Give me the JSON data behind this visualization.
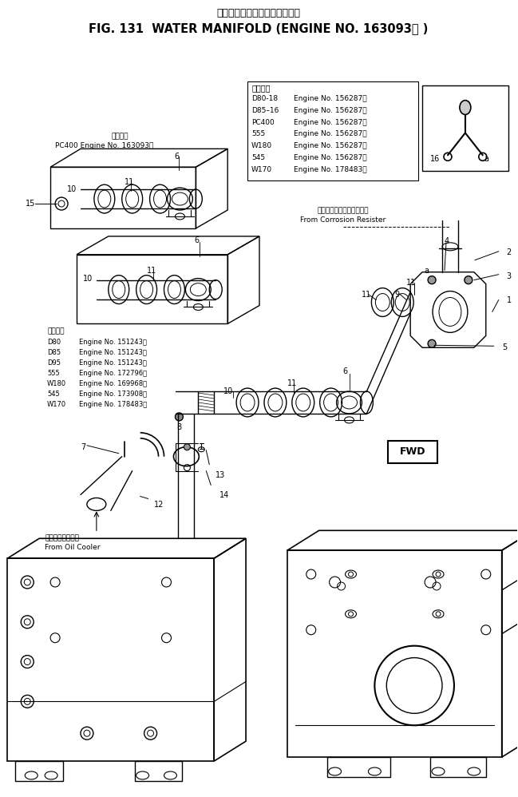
{
  "title_jp": "ウォータマニホルド　適用号機",
  "title_en": "FIG. 131  WATER MANIFOLD (ENGINE NO. 163093－ )",
  "bg_color": "#ffffff",
  "table1_title": "適用号機",
  "table1_lines": [
    [
      "D80-18",
      "Engine No. 156287～"
    ],
    [
      "D85–16",
      "Engine No. 156287～"
    ],
    [
      "PC400",
      "Engine No. 156287～"
    ],
    [
      "555",
      "Engine No. 156287～"
    ],
    [
      "W180",
      "Engine No. 156287～"
    ],
    [
      "545",
      "Engine No. 156287～"
    ],
    [
      "W170",
      "Engine No. 178483～"
    ]
  ],
  "table2_title": "適用号機",
  "table2_lines": [
    [
      "D80",
      "Engine No. 151243～"
    ],
    [
      "D85",
      "Engine No. 151243～"
    ],
    [
      "D95",
      "Engine No. 151243～"
    ],
    [
      "555",
      "Engine No. 172796～"
    ],
    [
      "W180",
      "Engine No. 169968～"
    ],
    [
      "545",
      "Engine No. 173908～"
    ],
    [
      "W170",
      "Engine No. 178483～"
    ]
  ],
  "label_corrosion_jp": "コロージョンレジスタから",
  "label_corrosion_en": "From Corrosion Resister",
  "label_oil_jp": "オイルクーラから",
  "label_oil_en": "From Oil Cooler",
  "label_fwd": "FWD",
  "label_pc400_title": "適用号機",
  "label_pc400": "PC400 Engine No. 163093～"
}
